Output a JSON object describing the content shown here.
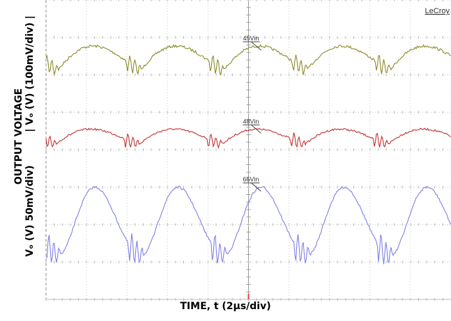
{
  "chart_data": {
    "type": "line",
    "brand": "LeCroy",
    "xlabel": "TIME, t (2µs/div)",
    "ylabel_lines": [
      "OUTPUT VOLTAGE",
      "| Vₒ (V) (100mV/div) |",
      "Vₒ (V) 50mV/div)"
    ],
    "x_divisions": 10,
    "y_divisions": 8,
    "grid": true,
    "series": [
      {
        "name": "45Vin",
        "color": "#8a8a2a",
        "period_div": 2.05,
        "phase_div": 0.3,
        "center_div": 1.55,
        "amplitude_div": 0.32,
        "ripple_div": 0.07,
        "dip_depth_div": 0.28,
        "sharpness": 1.2
      },
      {
        "name": "48Vin",
        "color": "#c03030",
        "period_div": 2.05,
        "phase_div": 0.25,
        "center_div": 3.65,
        "amplitude_div": 0.2,
        "ripple_div": 0.05,
        "dip_depth_div": 0.22,
        "sharpness": 1.2
      },
      {
        "name": "65Vin",
        "color": "#7f7fe8",
        "period_div": 2.05,
        "phase_div": 0.35,
        "center_div": 5.9,
        "amplitude_div": 0.9,
        "ripple_div": 0.06,
        "dip_depth_div": 0.45,
        "sharpness": 2.2
      }
    ]
  }
}
